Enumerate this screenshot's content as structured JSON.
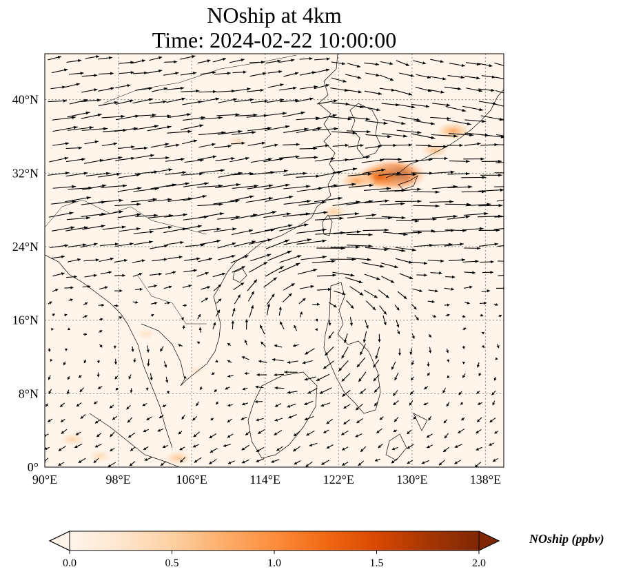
{
  "title": {
    "line1": "NOship at 4km",
    "line2": "Time: 2024-02-22 10:00:00"
  },
  "map": {
    "lon_range": [
      90,
      140
    ],
    "lat_range": [
      0,
      45
    ],
    "xticks": [
      {
        "value": 90,
        "label": "90°E"
      },
      {
        "value": 98,
        "label": "98°E"
      },
      {
        "value": 106,
        "label": "106°E"
      },
      {
        "value": 114,
        "label": "114°E"
      },
      {
        "value": 122,
        "label": "122°E"
      },
      {
        "value": 130,
        "label": "130°E"
      },
      {
        "value": 138,
        "label": "138°E"
      }
    ],
    "yticks": [
      {
        "value": 0,
        "label": "0°"
      },
      {
        "value": 8,
        "label": "8°N"
      },
      {
        "value": 16,
        "label": "16°N"
      },
      {
        "value": 24,
        "label": "24°N"
      },
      {
        "value": 32,
        "label": "32°N"
      },
      {
        "value": 40,
        "label": "40°N"
      }
    ],
    "gridline_color": "#8a8a8a",
    "background_color": "#fff5eb",
    "hotspots": [
      {
        "lon": 128.0,
        "lat": 31.8,
        "value": 1.9
      },
      {
        "lon": 126.5,
        "lat": 31.6,
        "value": 1.3
      },
      {
        "lon": 124.0,
        "lat": 31.2,
        "value": 0.8
      },
      {
        "lon": 134.5,
        "lat": 36.6,
        "value": 0.8
      },
      {
        "lon": 132.5,
        "lat": 34.5,
        "value": 0.6
      },
      {
        "lon": 121.5,
        "lat": 27.8,
        "value": 0.5
      },
      {
        "lon": 111.0,
        "lat": 35.5,
        "value": 0.35
      },
      {
        "lon": 93.0,
        "lat": 3.0,
        "value": 0.45
      },
      {
        "lon": 96.0,
        "lat": 1.2,
        "value": 0.4
      },
      {
        "lon": 104.5,
        "lat": 1.0,
        "value": 0.55
      },
      {
        "lon": 101.0,
        "lat": 14.5,
        "value": 0.3
      },
      {
        "lon": 106.5,
        "lat": 10.5,
        "value": 0.25
      }
    ]
  },
  "colorbar": {
    "title": "NOship (ppbv)",
    "min": 0.0,
    "max": 2.0,
    "extend": "both",
    "colors": [
      "#fff5eb",
      "#fee6ce",
      "#fdd0a2",
      "#fdae6b",
      "#fd8d3c",
      "#f16913",
      "#d94801",
      "#a63603",
      "#7f2704"
    ],
    "ticks": [
      {
        "value": 0.0,
        "label": "0.0"
      },
      {
        "value": 0.5,
        "label": "0.5"
      },
      {
        "value": 1.0,
        "label": "1.0"
      },
      {
        "value": 1.5,
        "label": "1.5"
      },
      {
        "value": 2.0,
        "label": "2.0"
      }
    ]
  },
  "coastline_color": "#000000",
  "arrow_color": "#000000"
}
